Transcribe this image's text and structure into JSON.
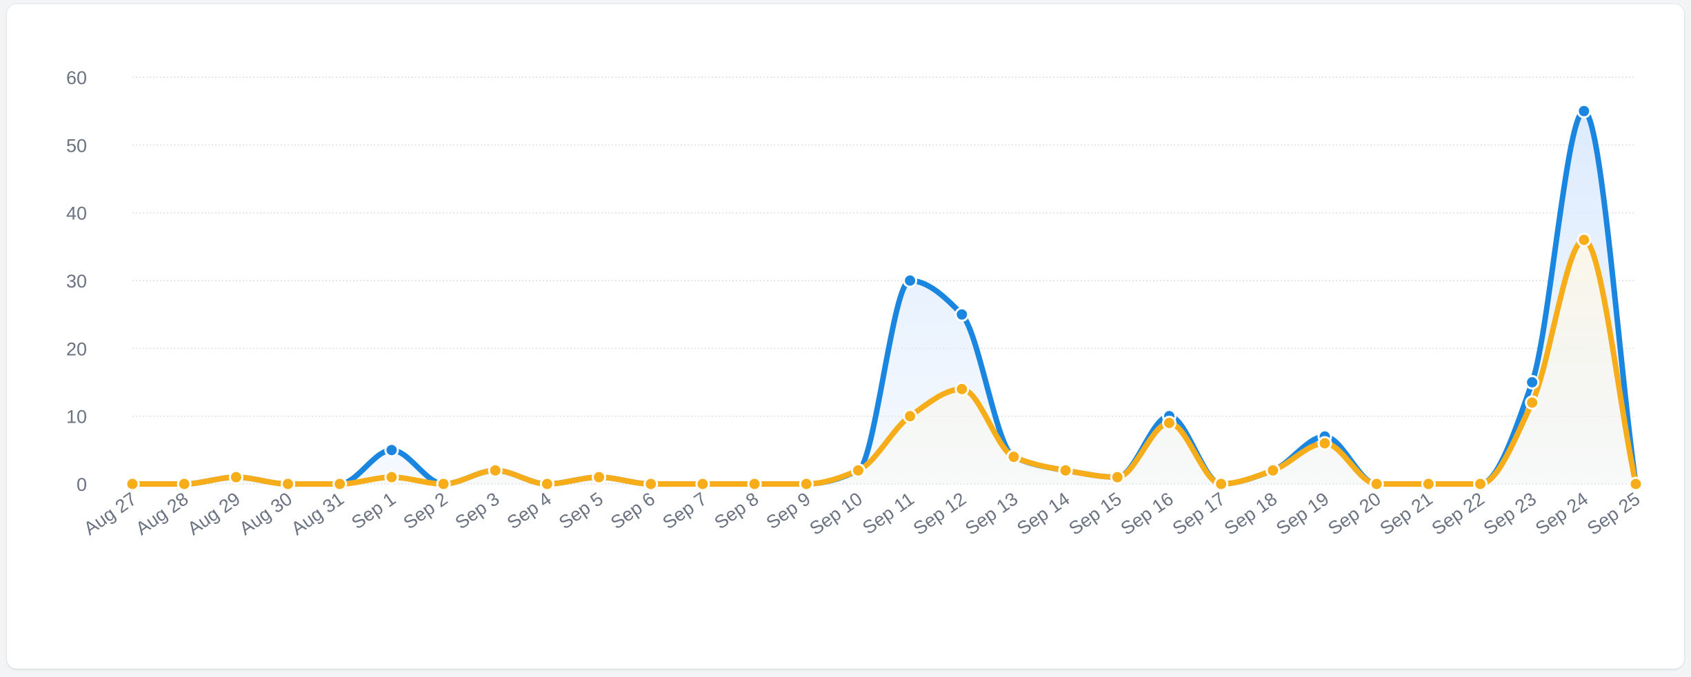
{
  "chart_data": {
    "type": "area",
    "x_labels": [
      "Aug 27",
      "Aug 28",
      "Aug 29",
      "Aug 30",
      "Aug 31",
      "Sep 1",
      "Sep 2",
      "Sep 3",
      "Sep 4",
      "Sep 5",
      "Sep 6",
      "Sep 7",
      "Sep 8",
      "Sep 9",
      "Sep 10",
      "Sep 11",
      "Sep 12",
      "Sep 13",
      "Sep 14",
      "Sep 15",
      "Sep 16",
      "Sep 17",
      "Sep 18",
      "Sep 19",
      "Sep 20",
      "Sep 21",
      "Sep 22",
      "Sep 23",
      "Sep 24",
      "Sep 25"
    ],
    "series": [
      {
        "color": "#1a86e0",
        "fill_color": "#dbeafe",
        "values": [
          0,
          0,
          1,
          0,
          0,
          5,
          0,
          2,
          0,
          1,
          0,
          0,
          0,
          0,
          2,
          30,
          25,
          4,
          2,
          1,
          10,
          0,
          2,
          7,
          0,
          0,
          0,
          15,
          55,
          0
        ]
      },
      {
        "color": "#f7ad1a",
        "fill_color": "#fcf7e8",
        "values": [
          0,
          0,
          1,
          0,
          0,
          1,
          0,
          2,
          0,
          1,
          0,
          0,
          0,
          0,
          2,
          10,
          14,
          4,
          2,
          1,
          9,
          0,
          2,
          6,
          0,
          0,
          0,
          12,
          36,
          0
        ]
      }
    ],
    "y_ticks": [
      0,
      10,
      20,
      30,
      40,
      50,
      60
    ],
    "ylim": [
      0,
      60
    ],
    "grid": true,
    "grid_style": "dotted",
    "legend": "none"
  }
}
